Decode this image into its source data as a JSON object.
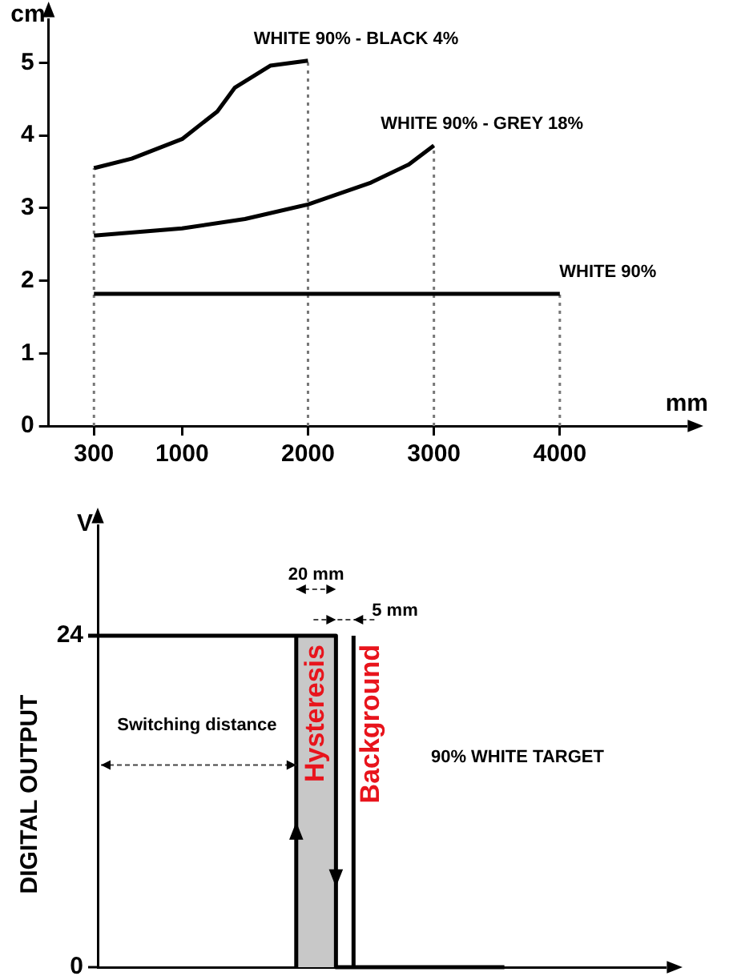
{
  "chart_data": [
    {
      "type": "line",
      "xlabel": "mm",
      "ylabel": "cm",
      "xlim": [
        -60,
        5000
      ],
      "ylim": [
        0,
        5.6
      ],
      "xticks": [
        300,
        1000,
        2000,
        3000,
        4000
      ],
      "yticks": [
        0,
        1,
        2,
        3,
        4,
        5
      ],
      "grid": false,
      "marker": "none",
      "series": [
        {
          "name": "WHITE 90% - BLACK 4%",
          "color": "#000000",
          "x": [
            300,
            600,
            1000,
            1280,
            1420,
            1700,
            2000
          ],
          "values": [
            3.55,
            3.68,
            3.95,
            4.33,
            4.66,
            4.96,
            5.03
          ]
        },
        {
          "name": "WHITE 90% - GREY 18%",
          "color": "#000000",
          "x": [
            300,
            1000,
            1500,
            2000,
            2500,
            2800,
            3000
          ],
          "values": [
            2.62,
            2.72,
            2.85,
            3.05,
            3.35,
            3.6,
            3.86
          ]
        },
        {
          "name": "WHITE 90%",
          "color": "#000000",
          "x": [
            300,
            4000
          ],
          "values": [
            1.82,
            1.82
          ]
        },
        {
          "color": "#777777",
          "line_style": "dotted",
          "x": [
            300,
            300
          ],
          "values": [
            0,
            3.55
          ]
        },
        {
          "color": "#777777",
          "line_style": "dotted",
          "x": [
            2000,
            2000
          ],
          "values": [
            0,
            5.03
          ]
        },
        {
          "color": "#777777",
          "line_style": "dotted",
          "x": [
            3000,
            3000
          ],
          "values": [
            0,
            3.86
          ]
        },
        {
          "color": "#777777",
          "line_style": "dotted",
          "x": [
            4000,
            4000
          ],
          "values": [
            0,
            1.82
          ]
        }
      ]
    },
    {
      "type": "other",
      "ylabel": "DIGITAL OUTPUT",
      "annotations": [
        "V",
        "20 mm",
        "5 mm",
        "Switching distance",
        "Hysteresis",
        "Background",
        "90% WHITE TARGET",
        "24",
        "0"
      ]
    }
  ]
}
